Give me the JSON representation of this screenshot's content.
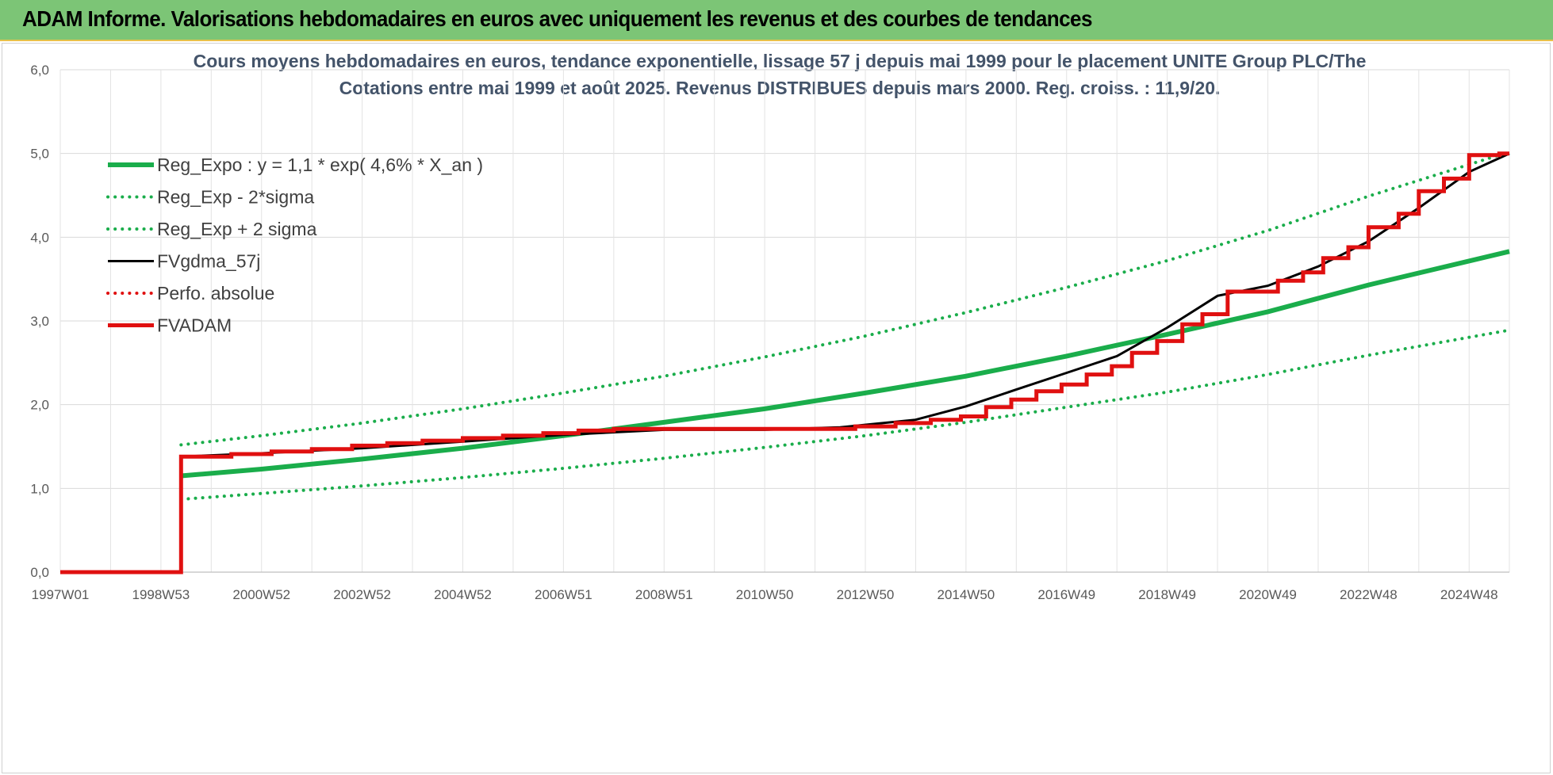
{
  "header": {
    "title": "ADAM Informe. Valorisations hebdomadaires en euros avec uniquement les revenus et des courbes de tendances"
  },
  "colors": {
    "header_bg": "#7cc576",
    "green": "#1aad4b",
    "black": "#000000",
    "red": "#e01010"
  },
  "chart_data": {
    "type": "line",
    "title_lines": [
      "Cours moyens hebdomadaires en euros, tendance exponentielle, lissage 57 j depuis mai 1999 pour le placement UNITE Group PLC/The",
      "Cotations entre mai 1999 et août 2025. Revenus DISTRIBUES depuis mars 2000. Reg. croiss. : 11,9/20."
    ],
    "xlabel": "",
    "ylabel": "",
    "ylim": [
      0,
      6
    ],
    "y_ticks": [
      "0,0",
      "1,0",
      "2,0",
      "3,0",
      "4,0",
      "5,0",
      "6,0"
    ],
    "x_range": [
      1997.0,
      2025.8
    ],
    "x_ticks": [
      {
        "year": 1997.0,
        "label": "1997W01"
      },
      {
        "year": 1999.0,
        "label": "1998W53"
      },
      {
        "year": 2001.0,
        "label": "2000W52"
      },
      {
        "year": 2003.0,
        "label": "2002W52"
      },
      {
        "year": 2005.0,
        "label": "2004W52"
      },
      {
        "year": 2007.0,
        "label": "2006W51"
      },
      {
        "year": 2009.0,
        "label": "2008W51"
      },
      {
        "year": 2011.0,
        "label": "2010W50"
      },
      {
        "year": 2013.0,
        "label": "2012W50"
      },
      {
        "year": 2015.0,
        "label": "2014W50"
      },
      {
        "year": 2017.0,
        "label": "2016W49"
      },
      {
        "year": 2019.0,
        "label": "2018W49"
      },
      {
        "year": 2021.0,
        "label": "2020W49"
      },
      {
        "year": 2023.0,
        "label": "2022W48"
      },
      {
        "year": 2025.0,
        "label": "2024W48"
      }
    ],
    "grid": true,
    "legend_position": "top-left",
    "series": [
      {
        "name": "Reg_Expo : y = 1,1 * exp( 4,6% *  X_an )",
        "style": "solid-thick",
        "color": "#1aad4b",
        "x": [
          1999.4,
          2001,
          2003,
          2005,
          2007,
          2009,
          2011,
          2013,
          2015,
          2017,
          2019,
          2021,
          2023,
          2025.8
        ],
        "y": [
          1.15,
          1.23,
          1.35,
          1.48,
          1.63,
          1.79,
          1.95,
          2.14,
          2.34,
          2.58,
          2.84,
          3.11,
          3.43,
          3.83
        ]
      },
      {
        "name": "Reg_Exp - 2*sigma",
        "style": "dotted",
        "color": "#1aad4b",
        "x": [
          1999.4,
          2001,
          2003,
          2005,
          2007,
          2009,
          2011,
          2013,
          2015,
          2017,
          2019,
          2021,
          2023,
          2025.8
        ],
        "y": [
          0.87,
          0.94,
          1.03,
          1.13,
          1.24,
          1.36,
          1.49,
          1.63,
          1.79,
          1.97,
          2.15,
          2.36,
          2.59,
          2.89
        ]
      },
      {
        "name": "Reg_Exp + 2 sigma",
        "style": "dotted",
        "color": "#1aad4b",
        "x": [
          1999.4,
          2001,
          2003,
          2005,
          2007,
          2009,
          2011,
          2013,
          2015,
          2017,
          2019,
          2021,
          2023,
          2025.8
        ],
        "y": [
          1.52,
          1.63,
          1.78,
          1.95,
          2.14,
          2.34,
          2.57,
          2.82,
          3.1,
          3.4,
          3.72,
          4.08,
          4.49,
          5.02
        ]
      },
      {
        "name": "FVgdma_57j",
        "style": "solid",
        "color": "#000000",
        "x": [
          1997.0,
          1999.4,
          1999.4,
          2001,
          2003,
          2005,
          2007,
          2009,
          2011,
          2012.5,
          2014,
          2015,
          2016,
          2017,
          2018,
          2019,
          2020,
          2021,
          2022,
          2023,
          2024,
          2025,
          2025.8
        ],
        "y": [
          0,
          0,
          1.38,
          1.42,
          1.48,
          1.56,
          1.64,
          1.7,
          1.7,
          1.73,
          1.82,
          1.98,
          2.18,
          2.38,
          2.58,
          2.92,
          3.3,
          3.42,
          3.65,
          3.95,
          4.35,
          4.78,
          5.0
        ]
      },
      {
        "name": "Perfo. absolue",
        "style": "dotted",
        "color": "#e01010",
        "x": [],
        "y": []
      },
      {
        "name": "FVADAM",
        "style": "step-thick",
        "color": "#e01010",
        "x": [
          1997.0,
          1999.4,
          1999.4,
          2000.4,
          2001.2,
          2002.0,
          2002.8,
          2003.5,
          2004.2,
          2005.0,
          2005.8,
          2006.6,
          2007.3,
          2008.0,
          2012.0,
          2012.8,
          2013.6,
          2014.3,
          2014.9,
          2015.4,
          2015.9,
          2016.4,
          2016.9,
          2017.4,
          2017.9,
          2018.3,
          2018.8,
          2019.3,
          2019.7,
          2020.2,
          2021.2,
          2021.7,
          2022.1,
          2022.6,
          2023.0,
          2023.6,
          2024.0,
          2024.5,
          2025.0,
          2025.6,
          2025.8
        ],
        "y": [
          0,
          0,
          1.38,
          1.41,
          1.44,
          1.47,
          1.51,
          1.54,
          1.57,
          1.6,
          1.63,
          1.66,
          1.69,
          1.71,
          1.71,
          1.74,
          1.78,
          1.82,
          1.86,
          1.97,
          2.06,
          2.16,
          2.24,
          2.36,
          2.46,
          2.62,
          2.76,
          2.96,
          3.08,
          3.35,
          3.48,
          3.58,
          3.75,
          3.88,
          4.12,
          4.28,
          4.55,
          4.7,
          4.98,
          5.0,
          5.0
        ]
      }
    ]
  }
}
